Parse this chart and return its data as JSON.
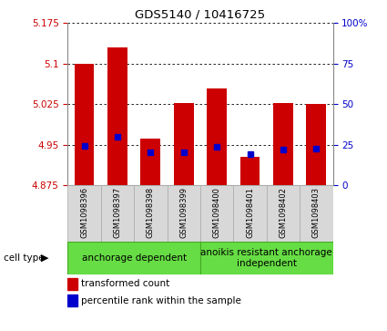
{
  "title": "GDS5140 / 10416725",
  "samples": [
    "GSM1098396",
    "GSM1098397",
    "GSM1098398",
    "GSM1098399",
    "GSM1098400",
    "GSM1098401",
    "GSM1098402",
    "GSM1098403"
  ],
  "red_values": [
    5.1,
    5.13,
    4.962,
    5.028,
    5.055,
    4.927,
    5.028,
    5.025
  ],
  "blue_values": [
    4.948,
    4.965,
    4.937,
    4.937,
    4.946,
    4.932,
    4.942,
    4.943
  ],
  "y_min": 4.875,
  "y_max": 5.175,
  "y_ticks": [
    4.875,
    4.95,
    5.025,
    5.1,
    5.175
  ],
  "right_y_ticks": [
    0,
    25,
    50,
    75,
    100
  ],
  "right_y_labels": [
    "0",
    "25",
    "50",
    "75",
    "100%"
  ],
  "bar_width": 0.6,
  "red_color": "#cc0000",
  "blue_color": "#0000cc",
  "bg_color": "#d8d8d8",
  "plot_bg": "#ffffff",
  "group_bg": "#66dd44",
  "left_label_color": "#cc0000",
  "right_label_color": "#0000cc",
  "group1_label": "anchorage dependent",
  "group2_label": "anoikis resistant anchorage\nindependent",
  "group1_range": [
    0,
    3
  ],
  "group2_range": [
    4,
    7
  ]
}
